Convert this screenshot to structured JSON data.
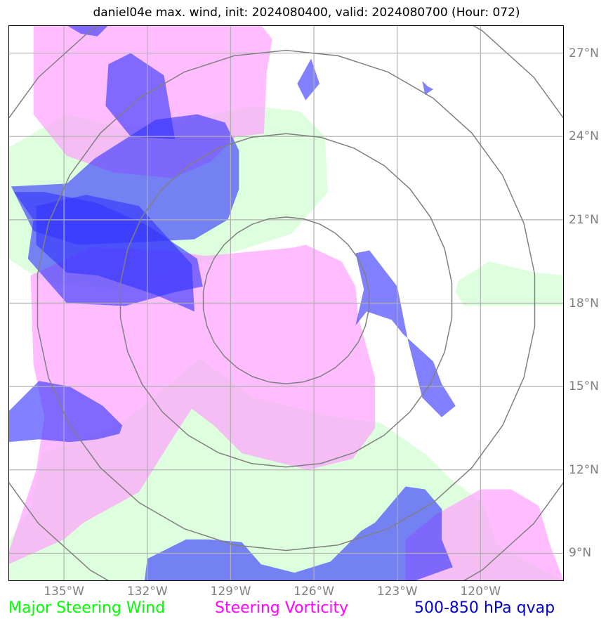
{
  "title": "daniel04e max. wind, init: 2024080400, valid: 2024080700 (Hour: 072)",
  "map": {
    "projection": "plate-carree",
    "lon_range": [
      -137.0,
      -117.0
    ],
    "lat_range": [
      8.0,
      28.0
    ],
    "storm_center": {
      "lon": -127.0,
      "lat": 18.1
    },
    "range_rings_deg": [
      3,
      6,
      9,
      12
    ],
    "ring_color": "#808080",
    "grid_color": "#b0b0b0",
    "lon_ticks": [
      {
        "value": -135,
        "label": "135°W"
      },
      {
        "value": -132,
        "label": "132°W"
      },
      {
        "value": -129,
        "label": "129°W"
      },
      {
        "value": -126,
        "label": "126°W"
      },
      {
        "value": -123,
        "label": "123°W"
      },
      {
        "value": -120,
        "label": "120°W"
      }
    ],
    "lat_ticks": [
      {
        "value": 27,
        "label": "27°N"
      },
      {
        "value": 24,
        "label": "24°N"
      },
      {
        "value": 21,
        "label": "21°N"
      },
      {
        "value": 18,
        "label": "18°N"
      },
      {
        "value": 15,
        "label": "15°N"
      },
      {
        "value": 12,
        "label": "12°N"
      },
      {
        "value": 9,
        "label": "9°N"
      }
    ]
  },
  "layers": [
    {
      "name": "Major Steering Wind",
      "color": "#ccffcc",
      "opacity": 0.65,
      "polygons": [
        [
          [
            -137,
            23.6
          ],
          [
            -134.9,
            24.8
          ],
          [
            -132.8,
            24.3
          ],
          [
            -129.7,
            24.8
          ],
          [
            -128.2,
            25.1
          ],
          [
            -126.5,
            24.9
          ],
          [
            -125.6,
            24.0
          ],
          [
            -125.5,
            22.0
          ],
          [
            -126.8,
            20.5
          ],
          [
            -129.0,
            19.8
          ],
          [
            -133.0,
            18.5
          ],
          [
            -135.8,
            18.8
          ],
          [
            -137,
            19.6
          ]
        ],
        [
          [
            -120.8,
            18.8
          ],
          [
            -119.7,
            19.5
          ],
          [
            -118.0,
            19.1
          ],
          [
            -117,
            19.0
          ],
          [
            -117,
            17.9
          ],
          [
            -120.6,
            17.9
          ],
          [
            -120.9,
            18.4
          ]
        ],
        [
          [
            -137,
            9.4
          ],
          [
            -136.2,
            10.6
          ],
          [
            -135.8,
            12.6
          ],
          [
            -133.0,
            13.6
          ],
          [
            -130.1,
            16.0
          ],
          [
            -128.2,
            14.6
          ],
          [
            -125.2,
            13.9
          ],
          [
            -123.6,
            13.7
          ],
          [
            -121.9,
            12.5
          ],
          [
            -121.1,
            11.7
          ],
          [
            -119.9,
            10.8
          ],
          [
            -119.4,
            9.3
          ],
          [
            -117.0,
            8.0
          ],
          [
            -137,
            8.0
          ]
        ]
      ]
    },
    {
      "name": "Steering Vorticity",
      "color": "#ff99ff",
      "opacity": 0.65,
      "polygons": [
        [
          [
            -136.1,
            28.0
          ],
          [
            -136.1,
            24.8
          ],
          [
            -134.9,
            23.3
          ],
          [
            -133.2,
            22.7
          ],
          [
            -131.1,
            22.5
          ],
          [
            -129.7,
            23.1
          ],
          [
            -128.8,
            24.0
          ],
          [
            -127.8,
            24.1
          ],
          [
            -127.7,
            26.3
          ],
          [
            -127.5,
            27.5
          ],
          [
            -127.9,
            28.0
          ]
        ],
        [
          [
            -137,
            9.0
          ],
          [
            -136.0,
            12.0
          ],
          [
            -135.7,
            13.9
          ],
          [
            -136.1,
            15.8
          ],
          [
            -136.2,
            19.0
          ],
          [
            -134.0,
            20.0
          ],
          [
            -131.3,
            19.9
          ],
          [
            -129.9,
            19.7
          ],
          [
            -126.7,
            20.0
          ],
          [
            -126.3,
            20.1
          ],
          [
            -125.0,
            19.5
          ],
          [
            -124.5,
            18.6
          ],
          [
            -124.4,
            17.5
          ],
          [
            -123.8,
            15.3
          ],
          [
            -123.8,
            13.5
          ],
          [
            -124.6,
            12.4
          ],
          [
            -126.2,
            12.0
          ],
          [
            -128.6,
            12.6
          ],
          [
            -129.6,
            13.6
          ],
          [
            -130.4,
            14.2
          ],
          [
            -131.3,
            12.8
          ],
          [
            -132.3,
            11.2
          ],
          [
            -134.3,
            10.1
          ],
          [
            -135.0,
            9.5
          ],
          [
            -137,
            8.6
          ]
        ],
        [
          [
            -122.7,
            8.0
          ],
          [
            -122.7,
            9.5
          ],
          [
            -121.6,
            10.4
          ],
          [
            -120.0,
            11.3
          ],
          [
            -118.9,
            11.3
          ],
          [
            -117.9,
            10.7
          ],
          [
            -117.5,
            9.3
          ],
          [
            -117.0,
            8.0
          ]
        ]
      ]
    },
    {
      "name": "500-850 hPa qvap",
      "color": "#3333ff",
      "opacity": 0.62,
      "polygons": [
        [
          [
            -136.8,
            22.0
          ],
          [
            -135.7,
            22.0
          ],
          [
            -133.8,
            21.6
          ],
          [
            -132.0,
            20.8
          ],
          [
            -130.2,
            19.6
          ],
          [
            -130.0,
            18.6
          ],
          [
            -131.0,
            18.4
          ],
          [
            -132.8,
            17.9
          ],
          [
            -134.9,
            18.0
          ],
          [
            -136.3,
            19.6
          ],
          [
            -136.1,
            21.0
          ]
        ],
        [
          [
            -131.0,
            23.9
          ],
          [
            -131.4,
            26.2
          ],
          [
            -132.6,
            27.0
          ],
          [
            -133.4,
            26.6
          ],
          [
            -133.5,
            25.1
          ],
          [
            -132.6,
            24.0
          ]
        ],
        [
          [
            -136.0,
            20.1
          ],
          [
            -134.9,
            19.1
          ],
          [
            -133.8,
            19.0
          ],
          [
            -131.7,
            18.3
          ],
          [
            -130.3,
            17.7
          ],
          [
            -130.4,
            19.4
          ],
          [
            -132.3,
            21.5
          ],
          [
            -134.2,
            21.9
          ],
          [
            -136.0,
            21.5
          ]
        ],
        [
          [
            -131.7,
            24.6
          ],
          [
            -130.2,
            24.8
          ],
          [
            -129.2,
            24.5
          ],
          [
            -128.7,
            23.5
          ],
          [
            -128.7,
            22.1
          ],
          [
            -129.1,
            21.0
          ],
          [
            -130.3,
            20.3
          ],
          [
            -132.2,
            20.2
          ],
          [
            -134.5,
            20.1
          ],
          [
            -136.1,
            20.6
          ],
          [
            -136.9,
            22.2
          ],
          [
            -134.9,
            22.3
          ],
          [
            -133.9,
            23.2
          ]
        ],
        [
          [
            -137,
            14.1
          ],
          [
            -135.9,
            15.2
          ],
          [
            -134.8,
            15.0
          ],
          [
            -133.6,
            14.3
          ],
          [
            -132.9,
            13.6
          ],
          [
            -133.0,
            13.3
          ],
          [
            -133.8,
            13.1
          ],
          [
            -134.8,
            13.0
          ],
          [
            -135.9,
            13.1
          ],
          [
            -137,
            13.0
          ]
        ],
        [
          [
            -124.5,
            19.8
          ],
          [
            -124.0,
            19.9
          ],
          [
            -123.0,
            18.6
          ],
          [
            -122.6,
            16.6
          ],
          [
            -122.3,
            15.4
          ],
          [
            -122.1,
            14.6
          ],
          [
            -121.4,
            13.9
          ],
          [
            -120.9,
            14.3
          ],
          [
            -121.4,
            15.1
          ],
          [
            -121.7,
            15.9
          ],
          [
            -122.8,
            16.9
          ],
          [
            -123.2,
            17.4
          ],
          [
            -124.1,
            17.7
          ],
          [
            -124.5,
            17.2
          ],
          [
            -124.2,
            18.5
          ]
        ],
        [
          [
            -126.1,
            26.8
          ],
          [
            -125.8,
            25.9
          ],
          [
            -126.3,
            25.3
          ],
          [
            -126.6,
            25.9
          ]
        ],
        [
          [
            -122.1,
            26.0
          ],
          [
            -121.9,
            25.8
          ],
          [
            -121.7,
            25.7
          ],
          [
            -122.0,
            25.5
          ]
        ],
        [
          [
            -134.9,
            28.0
          ],
          [
            -134.4,
            27.7
          ],
          [
            -133.8,
            27.6
          ],
          [
            -133.4,
            28.0
          ]
        ],
        [
          [
            -132.1,
            8.0
          ],
          [
            -132.0,
            8.8
          ],
          [
            -130.6,
            9.5
          ],
          [
            -129.8,
            9.5
          ],
          [
            -128.6,
            9.4
          ],
          [
            -127.9,
            8.6
          ],
          [
            -126.7,
            8.3
          ],
          [
            -125.4,
            8.7
          ],
          [
            -124.3,
            9.8
          ],
          [
            -123.8,
            10.1
          ],
          [
            -122.7,
            11.4
          ],
          [
            -122.0,
            11.3
          ],
          [
            -121.4,
            10.6
          ],
          [
            -121.4,
            9.5
          ],
          [
            -121.0,
            8.5
          ],
          [
            -122.4,
            8.0
          ]
        ]
      ]
    }
  ],
  "legend": {
    "wind": {
      "label": "Major Steering Wind",
      "color": "#00ff00"
    },
    "vort": {
      "label": "Steering Vorticity",
      "color": "#ff00ff"
    },
    "qvap": {
      "label": "500-850 hPa qvap",
      "color": "#0000cc"
    }
  }
}
